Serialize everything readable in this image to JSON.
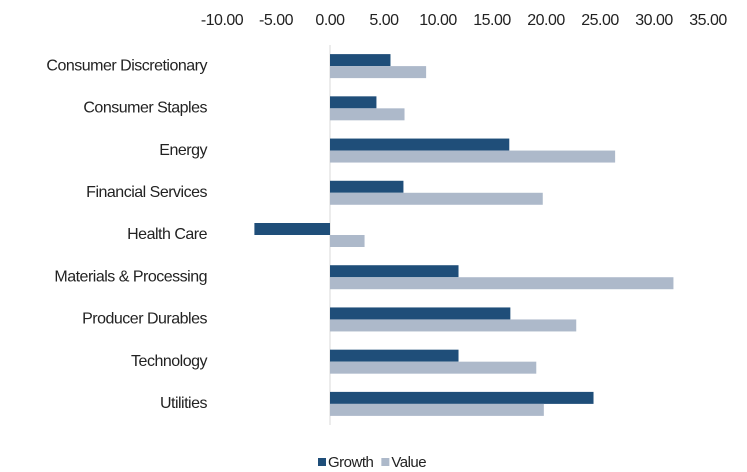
{
  "chart_data": {
    "type": "hbar",
    "categories": [
      "Consumer Discretionary",
      "Consumer Staples",
      "Energy",
      "Financial Services",
      "Health Care",
      "Materials & Processing",
      "Producer Durables",
      "Technology",
      "Utilities"
    ],
    "series": [
      {
        "name": "Growth",
        "color": "#1f4e79",
        "values": [
          5.6,
          4.3,
          16.6,
          6.8,
          -7.0,
          11.9,
          16.7,
          11.9,
          24.4
        ]
      },
      {
        "name": "Value",
        "color": "#adb9ca",
        "values": [
          8.9,
          6.9,
          26.4,
          19.7,
          3.2,
          31.8,
          22.8,
          19.1,
          19.8
        ]
      }
    ],
    "xlim": [
      -10,
      35
    ],
    "xticks": [
      {
        "value": -10,
        "label": "-10.00"
      },
      {
        "value": -5,
        "label": "-5.00"
      },
      {
        "value": 0,
        "label": "0.00"
      },
      {
        "value": 5,
        "label": "5.00"
      },
      {
        "value": 10,
        "label": "10.00"
      },
      {
        "value": 15,
        "label": "15.00"
      },
      {
        "value": 20,
        "label": "20.00"
      },
      {
        "value": 25,
        "label": "25.00"
      },
      {
        "value": 30,
        "label": "30.00"
      },
      {
        "value": 35,
        "label": "35.00"
      }
    ],
    "grid": false,
    "legend": "bottom"
  }
}
